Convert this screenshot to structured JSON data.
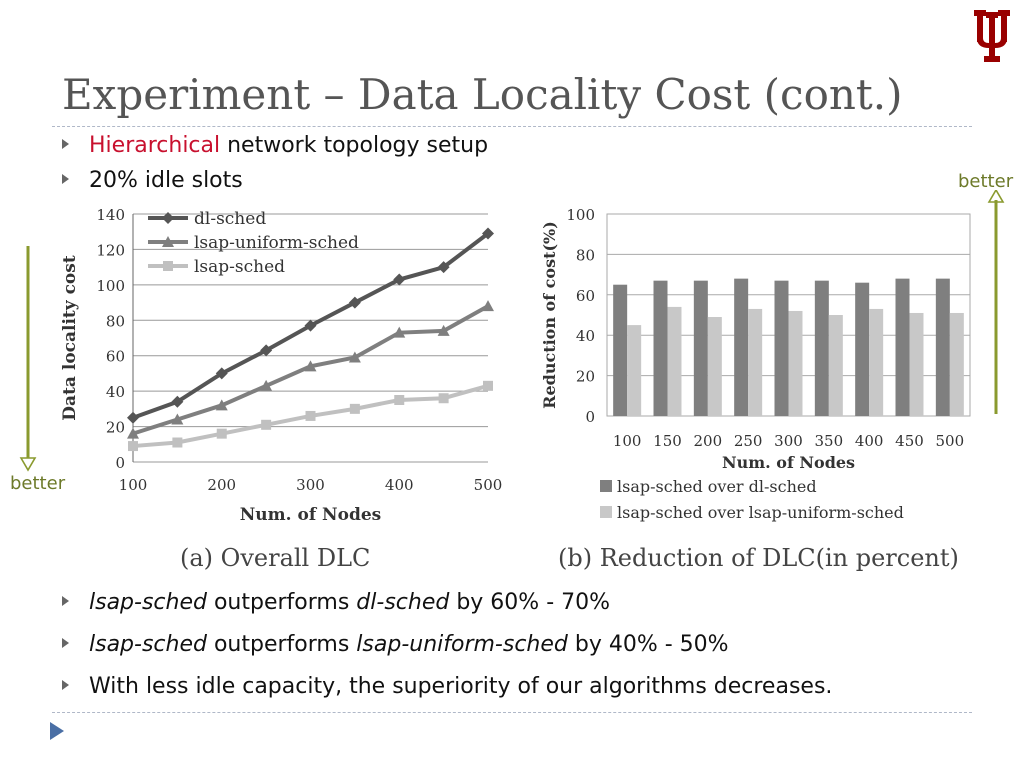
{
  "slide": {
    "title": "Experiment – Data Locality Cost (cont.)",
    "bullets_top": [
      {
        "parts": [
          {
            "text": "Hierarchical",
            "style": "red"
          },
          {
            "text": " network topology setup",
            "style": ""
          }
        ]
      },
      {
        "parts": [
          {
            "text": "20% idle slots",
            "style": ""
          }
        ]
      }
    ],
    "bullets_bottom": [
      {
        "parts": [
          {
            "text": "lsap-sched",
            "style": "it"
          },
          {
            "text": " outperforms ",
            "style": ""
          },
          {
            "text": "dl-sched",
            "style": "it"
          },
          {
            "text": " by 60% - 70%",
            "style": ""
          }
        ]
      },
      {
        "parts": [
          {
            "text": "lsap-sched",
            "style": "it"
          },
          {
            "text": " outperforms ",
            "style": ""
          },
          {
            "text": "lsap-uniform-sched",
            "style": "it"
          },
          {
            "text": " by 40% - 50%",
            "style": ""
          }
        ]
      },
      {
        "parts": [
          {
            "text": "With less idle capacity, the superiority of our algorithms decreases.",
            "style": ""
          }
        ]
      }
    ],
    "better_left": "better",
    "better_right": "better",
    "caption_a": "(a) Overall DLC",
    "caption_b": "(b) Reduction of DLC(in percent)",
    "colors": {
      "logo": "#990000",
      "arrow": "#8a9a2e",
      "better_text": "#6d7a2a",
      "title": "#555555"
    }
  },
  "chart_data": [
    {
      "type": "line",
      "x": [
        100,
        150,
        200,
        250,
        300,
        350,
        400,
        450,
        500
      ],
      "xticks": [
        100,
        200,
        300,
        400,
        500
      ],
      "yticks": [
        0,
        20,
        40,
        60,
        80,
        100,
        120,
        140
      ],
      "xlim": [
        100,
        500
      ],
      "ylim": [
        0,
        140
      ],
      "xlabel": "Num. of Nodes",
      "ylabel": "Data locality  cost",
      "legend_position": "top-left",
      "series": [
        {
          "name": "dl-sched",
          "values": [
            25,
            34,
            50,
            63,
            77,
            90,
            103,
            110,
            129
          ],
          "color": "#555555",
          "marker": "diamond"
        },
        {
          "name": "lsap-uniform-sched",
          "values": [
            16,
            24,
            32,
            43,
            54,
            59,
            73,
            74,
            88
          ],
          "color": "#7f7f7f",
          "marker": "triangle"
        },
        {
          "name": "lsap-sched",
          "values": [
            9,
            11,
            16,
            21,
            26,
            30,
            35,
            36,
            43
          ],
          "color": "#c0c0c0",
          "marker": "square"
        }
      ]
    },
    {
      "type": "bar",
      "categories": [
        "100",
        "150",
        "200",
        "250",
        "300",
        "350",
        "400",
        "450",
        "500"
      ],
      "yticks": [
        0,
        20,
        40,
        60,
        80,
        100
      ],
      "ylim": [
        0,
        100
      ],
      "xlabel": "Num. of Nodes",
      "ylabel": "Reduction of cost(%)",
      "legend_position": "bottom",
      "series": [
        {
          "name": "lsap-sched over dl-sched",
          "values": [
            65,
            67,
            67,
            68,
            67,
            67,
            66,
            68,
            68
          ],
          "color": "#7f7f7f"
        },
        {
          "name": "lsap-sched over lsap-uniform-sched",
          "values": [
            45,
            54,
            49,
            53,
            52,
            50,
            53,
            51,
            51
          ],
          "color": "#c8c8c8"
        }
      ]
    }
  ]
}
